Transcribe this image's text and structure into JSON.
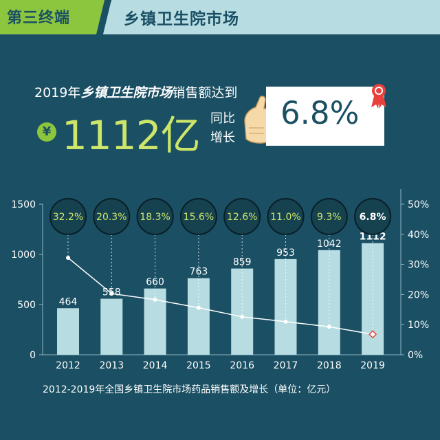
{
  "header": {
    "tag": "第三终端",
    "title": "乡镇卫生院市场"
  },
  "headline": {
    "prefix": "2019年",
    "highlight": "乡镇卫生院市场",
    "suffix": "销售额达到",
    "currency": "¥",
    "amount": "1112亿",
    "yoy_line1": "同比",
    "yoy_line2": "增长",
    "growth": "6.8%"
  },
  "caption": "2012-2019年全国乡镇卫生院市场药品销售额及增长（单位：亿元）",
  "colors": {
    "background": "#1b4f63",
    "bar": "#b7dde3",
    "accent_green": "#8cc63f",
    "value_text": "#cde66a",
    "line": "#ffffff",
    "last_point": "#e8413c"
  },
  "icons": [
    "thumbs-up-icon",
    "award-ribbon-icon"
  ],
  "chart_data": {
    "type": "bar",
    "categories": [
      "2012",
      "2013",
      "2014",
      "2015",
      "2016",
      "2017",
      "2018",
      "2019"
    ],
    "values": [
      464,
      558,
      660,
      763,
      859,
      953,
      1042,
      1112
    ],
    "value_labels": [
      "464",
      "558",
      "660",
      "763",
      "859",
      "953",
      "1042",
      "1112"
    ],
    "ylim": [
      0,
      1500
    ],
    "yticks": [
      "0",
      "500",
      "1000",
      "1500"
    ],
    "secondary": {
      "type": "line",
      "values": [
        32.2,
        20.3,
        18.3,
        15.6,
        12.6,
        11.0,
        9.3,
        6.8
      ],
      "labels": [
        "32.2%",
        "20.3%",
        "18.3%",
        "15.6%",
        "12.6%",
        "11.0%",
        "9.3%",
        "6.8%"
      ],
      "ylim": [
        0,
        50
      ],
      "yticks": [
        "0%",
        "10%",
        "20%",
        "30%",
        "40%",
        "50%"
      ]
    },
    "xlabel": "",
    "ylabel": "",
    "grid": false,
    "legend": "none"
  }
}
